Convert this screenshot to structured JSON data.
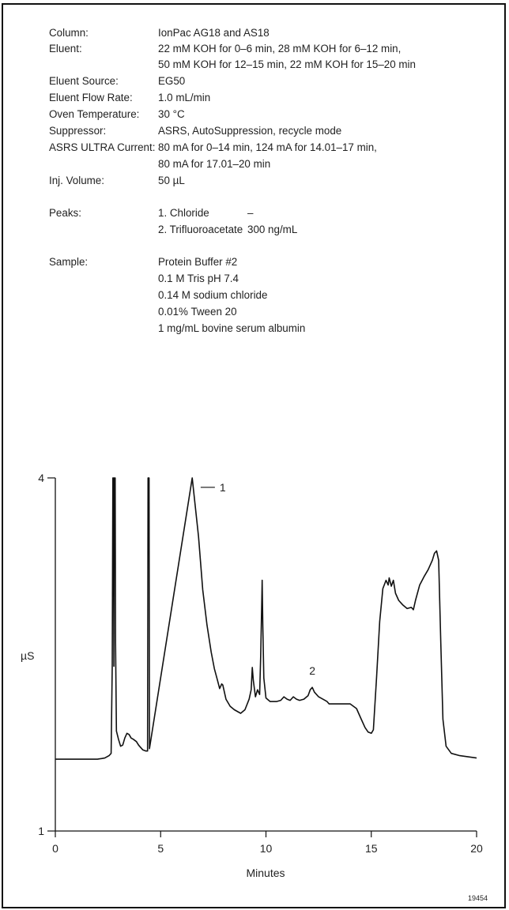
{
  "conditions": {
    "column": {
      "label": "Column:",
      "value": "IonPac AG18 and AS18"
    },
    "eluent": {
      "label": "Eluent:",
      "value1": "22 mM KOH for 0–6 min, 28 mM KOH for 6–12 min,",
      "value2": "50 mM KOH for 12–15 min, 22 mM KOH for 15–20 min"
    },
    "eluent_source": {
      "label": "Eluent Source:",
      "value": "EG50"
    },
    "flow_rate": {
      "label": "Eluent Flow Rate:",
      "value": "1.0 mL/min"
    },
    "oven_temp": {
      "label": "Oven Temperature:",
      "value": "30 °C"
    },
    "suppressor": {
      "label": "Suppressor:",
      "value": "ASRS, AutoSuppression, recycle mode"
    },
    "asrs_current": {
      "label": "ASRS ULTRA Current:",
      "value1": "80 mA for 0–14 min, 124 mA for 14.01–17 min,",
      "value2": "80 mA for 17.01–20 min"
    },
    "inj_volume": {
      "label": "Inj. Volume:",
      "value": "50 µL"
    },
    "peaks": {
      "label": "Peaks:",
      "items": [
        {
          "name": "1. Chloride",
          "amount": "–"
        },
        {
          "name": "2. Trifluoroacetate",
          "amount": "300 ng/mL"
        }
      ]
    },
    "sample": {
      "label": "Sample:",
      "lines": [
        "Protein Buffer #2",
        "0.1 M Tris pH 7.4",
        "0.14 M sodium chloride",
        "0.01% Tween 20",
        "1 mg/mL bovine serum albumin"
      ]
    }
  },
  "figure_number": "19454",
  "chart_data": {
    "type": "line",
    "title": "",
    "xlabel": "Minutes",
    "ylabel": "µS",
    "xlim": [
      0,
      20
    ],
    "ylim": [
      1,
      4
    ],
    "x_ticks": [
      "0",
      "5",
      "10",
      "15",
      "20"
    ],
    "y_ticks": [
      "1",
      "4"
    ],
    "grid": false,
    "legend": "none",
    "line_color": "#111111",
    "series": [
      {
        "points": [
          [
            0.0,
            1.61
          ],
          [
            0.5,
            1.61
          ],
          [
            1.0,
            1.61
          ],
          [
            1.5,
            1.61
          ],
          [
            2.0,
            1.61
          ],
          [
            2.35,
            1.62
          ],
          [
            2.55,
            1.64
          ],
          [
            2.65,
            1.66
          ],
          [
            2.7,
            2.4
          ],
          [
            2.73,
            4.0
          ],
          [
            2.76,
            4.0
          ],
          [
            2.78,
            2.4
          ],
          [
            2.8,
            4.0
          ],
          [
            2.84,
            4.0
          ],
          [
            2.86,
            2.6
          ],
          [
            2.9,
            1.85
          ],
          [
            3.0,
            1.78
          ],
          [
            3.1,
            1.72
          ],
          [
            3.2,
            1.73
          ],
          [
            3.3,
            1.79
          ],
          [
            3.4,
            1.83
          ],
          [
            3.5,
            1.82
          ],
          [
            3.6,
            1.79
          ],
          [
            3.7,
            1.78
          ],
          [
            3.85,
            1.76
          ],
          [
            3.95,
            1.73
          ],
          [
            4.05,
            1.71
          ],
          [
            4.15,
            1.69
          ],
          [
            4.3,
            1.68
          ],
          [
            4.38,
            1.68
          ],
          [
            4.4,
            4.0
          ],
          [
            4.45,
            4.0
          ],
          [
            4.47,
            1.7
          ],
          [
            6.5,
            4.0
          ],
          [
            6.8,
            3.5
          ],
          [
            7.0,
            3.05
          ],
          [
            7.2,
            2.75
          ],
          [
            7.4,
            2.52
          ],
          [
            7.55,
            2.38
          ],
          [
            7.7,
            2.28
          ],
          [
            7.8,
            2.21
          ],
          [
            7.9,
            2.25
          ],
          [
            7.95,
            2.24
          ],
          [
            8.1,
            2.12
          ],
          [
            8.3,
            2.06
          ],
          [
            8.5,
            2.03
          ],
          [
            8.8,
            2.0
          ],
          [
            9.0,
            2.03
          ],
          [
            9.2,
            2.12
          ],
          [
            9.3,
            2.2
          ],
          [
            9.35,
            2.39
          ],
          [
            9.4,
            2.28
          ],
          [
            9.5,
            2.14
          ],
          [
            9.6,
            2.2
          ],
          [
            9.7,
            2.16
          ],
          [
            9.75,
            2.48
          ],
          [
            9.8,
            2.95
          ],
          [
            9.82,
            3.13
          ],
          [
            9.85,
            2.75
          ],
          [
            9.9,
            2.3
          ],
          [
            10.0,
            2.13
          ],
          [
            10.2,
            2.1
          ],
          [
            10.5,
            2.1
          ],
          [
            10.7,
            2.11
          ],
          [
            10.85,
            2.14
          ],
          [
            11.0,
            2.12
          ],
          [
            11.15,
            2.11
          ],
          [
            11.3,
            2.14
          ],
          [
            11.45,
            2.12
          ],
          [
            11.6,
            2.11
          ],
          [
            11.8,
            2.12
          ],
          [
            12.0,
            2.15
          ],
          [
            12.1,
            2.2
          ],
          [
            12.2,
            2.22
          ],
          [
            12.3,
            2.18
          ],
          [
            12.5,
            2.14
          ],
          [
            12.7,
            2.12
          ],
          [
            12.9,
            2.1
          ],
          [
            13.0,
            2.08
          ],
          [
            13.5,
            2.08
          ],
          [
            14.0,
            2.08
          ],
          [
            14.3,
            2.04
          ],
          [
            14.5,
            1.96
          ],
          [
            14.7,
            1.88
          ],
          [
            14.85,
            1.84
          ],
          [
            15.0,
            1.83
          ],
          [
            15.1,
            1.86
          ],
          [
            15.25,
            2.3
          ],
          [
            15.4,
            2.78
          ],
          [
            15.55,
            3.06
          ],
          [
            15.7,
            3.13
          ],
          [
            15.8,
            3.09
          ],
          [
            15.85,
            3.15
          ],
          [
            15.95,
            3.08
          ],
          [
            16.05,
            3.13
          ],
          [
            16.15,
            3.02
          ],
          [
            16.3,
            2.96
          ],
          [
            16.5,
            2.92
          ],
          [
            16.7,
            2.89
          ],
          [
            16.9,
            2.9
          ],
          [
            17.0,
            2.88
          ],
          [
            17.1,
            2.96
          ],
          [
            17.3,
            3.09
          ],
          [
            17.5,
            3.16
          ],
          [
            17.7,
            3.22
          ],
          [
            17.9,
            3.3
          ],
          [
            18.0,
            3.36
          ],
          [
            18.1,
            3.38
          ],
          [
            18.2,
            3.3
          ],
          [
            18.3,
            2.6
          ],
          [
            18.4,
            1.95
          ],
          [
            18.55,
            1.72
          ],
          [
            18.8,
            1.66
          ],
          [
            19.2,
            1.64
          ],
          [
            19.6,
            1.63
          ],
          [
            20.0,
            1.62
          ]
        ]
      }
    ],
    "annotations": [
      {
        "label": "1",
        "x": 6.9,
        "y": 3.92
      },
      {
        "label": "2",
        "x": 12.2,
        "y": 2.29
      }
    ]
  }
}
